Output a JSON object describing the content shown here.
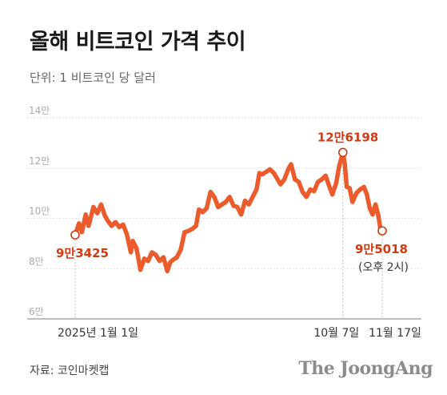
{
  "title": "올해 비트코인 가격 추이",
  "unit_label": "단위: 1 비트코인 당 달러",
  "source": "자료: 코인마켓캡",
  "brand": "The JoongAng",
  "colors": {
    "line": "#ec5b2b",
    "annotation": "#d43a12",
    "grid": "#d9d9d9",
    "axis_text": "#aaaaaa"
  },
  "chart_data": {
    "type": "line",
    "title": "올해 비트코인 가격 추이",
    "ylabel": "단위: 1 비트코인 당 달러",
    "ylim": [
      60000,
      140000
    ],
    "y_ticks": [
      {
        "value": 140000,
        "label": "14만"
      },
      {
        "value": 120000,
        "label": "12만"
      },
      {
        "value": 100000,
        "label": "10만"
      },
      {
        "value": 80000,
        "label": "8만"
      },
      {
        "value": 60000,
        "label": "6만"
      }
    ],
    "x_ticks": [
      {
        "date": "2025-01-01",
        "label": "2025년 1월 1일"
      },
      {
        "date": "2025-10-07",
        "label": "10월 7일"
      },
      {
        "date": "2025-11-17",
        "label": "11월 17일"
      }
    ],
    "annotations": [
      {
        "date": "2025-01-01",
        "value": 93425,
        "label": "9만3425",
        "sub": ""
      },
      {
        "date": "2025-10-07",
        "value": 126198,
        "label": "12만6198",
        "sub": ""
      },
      {
        "date": "2025-11-17",
        "value": 95018,
        "label": "9만5018",
        "sub": "(오후 2시)"
      }
    ],
    "series": [
      {
        "values": [
          [
            "2025-01-01",
            93425
          ],
          [
            "2025-01-05",
            98000
          ],
          [
            "2025-01-08",
            94500
          ],
          [
            "2025-01-12",
            101500
          ],
          [
            "2025-01-15",
            97000
          ],
          [
            "2025-01-20",
            104500
          ],
          [
            "2025-01-24",
            102000
          ],
          [
            "2025-01-28",
            105500
          ],
          [
            "2025-02-01",
            101000
          ],
          [
            "2025-02-04",
            99000
          ],
          [
            "2025-02-08",
            97000
          ],
          [
            "2025-02-12",
            98500
          ],
          [
            "2025-02-16",
            96500
          ],
          [
            "2025-02-20",
            97500
          ],
          [
            "2025-02-24",
            93500
          ],
          [
            "2025-02-28",
            86500
          ],
          [
            "2025-03-02",
            91000
          ],
          [
            "2025-03-06",
            88000
          ],
          [
            "2025-03-10",
            79500
          ],
          [
            "2025-03-14",
            84000
          ],
          [
            "2025-03-18",
            83000
          ],
          [
            "2025-03-22",
            86500
          ],
          [
            "2025-03-26",
            85500
          ],
          [
            "2025-03-30",
            83000
          ],
          [
            "2025-04-03",
            84500
          ],
          [
            "2025-04-07",
            79000
          ],
          [
            "2025-04-10",
            82500
          ],
          [
            "2025-04-13",
            83500
          ],
          [
            "2025-04-17",
            84500
          ],
          [
            "2025-04-21",
            87500
          ],
          [
            "2025-04-25",
            94500
          ],
          [
            "2025-04-29",
            95000
          ],
          [
            "2025-05-03",
            95800
          ],
          [
            "2025-05-07",
            97000
          ],
          [
            "2025-05-10",
            103500
          ],
          [
            "2025-05-14",
            102500
          ],
          [
            "2025-05-18",
            104000
          ],
          [
            "2025-05-22",
            110500
          ],
          [
            "2025-05-26",
            108500
          ],
          [
            "2025-05-30",
            104500
          ],
          [
            "2025-06-03",
            105500
          ],
          [
            "2025-06-07",
            106500
          ],
          [
            "2025-06-11",
            108500
          ],
          [
            "2025-06-15",
            105000
          ],
          [
            "2025-06-19",
            104500
          ],
          [
            "2025-06-23",
            101500
          ],
          [
            "2025-06-27",
            107000
          ],
          [
            "2025-07-01",
            105500
          ],
          [
            "2025-07-05",
            108500
          ],
          [
            "2025-07-09",
            111500
          ],
          [
            "2025-07-12",
            118000
          ],
          [
            "2025-07-15",
            117500
          ],
          [
            "2025-07-19",
            118500
          ],
          [
            "2025-07-23",
            119500
          ],
          [
            "2025-07-27",
            118000
          ],
          [
            "2025-07-31",
            115500
          ],
          [
            "2025-08-03",
            113500
          ],
          [
            "2025-08-07",
            115500
          ],
          [
            "2025-08-11",
            119500
          ],
          [
            "2025-08-14",
            121500
          ],
          [
            "2025-08-18",
            115500
          ],
          [
            "2025-08-22",
            114500
          ],
          [
            "2025-08-26",
            110500
          ],
          [
            "2025-08-30",
            108500
          ],
          [
            "2025-09-03",
            111500
          ],
          [
            "2025-09-07",
            110800
          ],
          [
            "2025-09-11",
            114500
          ],
          [
            "2025-09-15",
            115500
          ],
          [
            "2025-09-19",
            117000
          ],
          [
            "2025-09-23",
            112500
          ],
          [
            "2025-09-26",
            109500
          ],
          [
            "2025-09-30",
            114000
          ],
          [
            "2025-10-03",
            120500
          ],
          [
            "2025-10-07",
            126198
          ],
          [
            "2025-10-09",
            121500
          ],
          [
            "2025-10-11",
            112500
          ],
          [
            "2025-10-14",
            112000
          ],
          [
            "2025-10-17",
            106500
          ],
          [
            "2025-10-21",
            110000
          ],
          [
            "2025-10-25",
            111500
          ],
          [
            "2025-10-29",
            112500
          ],
          [
            "2025-11-01",
            109500
          ],
          [
            "2025-11-04",
            104000
          ],
          [
            "2025-11-07",
            101500
          ],
          [
            "2025-11-10",
            105500
          ],
          [
            "2025-11-13",
            101000
          ],
          [
            "2025-11-15",
            96000
          ],
          [
            "2025-11-17",
            95018
          ]
        ]
      }
    ]
  }
}
